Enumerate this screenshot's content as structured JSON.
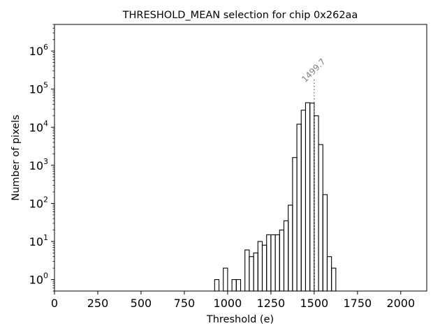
{
  "chart_data": {
    "type": "histogram",
    "title": "THRESHOLD_MEAN selection for chip 0x262aa",
    "xlabel": "Threshold (e)",
    "ylabel": "Number of pixels",
    "xlim": [
      0,
      2150
    ],
    "ylim": [
      0.5,
      5000000
    ],
    "yscale": "log",
    "grid": false,
    "x_ticks": [
      0,
      250,
      500,
      750,
      1000,
      1250,
      1500,
      1750,
      2000
    ],
    "y_ticks": [
      {
        "base": "10",
        "exp": "0",
        "value": 1
      },
      {
        "base": "10",
        "exp": "1",
        "value": 10
      },
      {
        "base": "10",
        "exp": "2",
        "value": 100
      },
      {
        "base": "10",
        "exp": "3",
        "value": 1000
      },
      {
        "base": "10",
        "exp": "4",
        "value": 10000
      },
      {
        "base": "10",
        "exp": "5",
        "value": 100000
      },
      {
        "base": "10",
        "exp": "6",
        "value": 1000000
      }
    ],
    "bin_width": 25,
    "bins": [
      {
        "x0": 925,
        "count": 1
      },
      {
        "x0": 975,
        "count": 2
      },
      {
        "x0": 1025,
        "count": 1
      },
      {
        "x0": 1050,
        "count": 1
      },
      {
        "x0": 1100,
        "count": 6
      },
      {
        "x0": 1125,
        "count": 4
      },
      {
        "x0": 1150,
        "count": 5
      },
      {
        "x0": 1175,
        "count": 10
      },
      {
        "x0": 1200,
        "count": 8
      },
      {
        "x0": 1225,
        "count": 15
      },
      {
        "x0": 1250,
        "count": 15
      },
      {
        "x0": 1275,
        "count": 15
      },
      {
        "x0": 1300,
        "count": 20
      },
      {
        "x0": 1325,
        "count": 35
      },
      {
        "x0": 1350,
        "count": 90
      },
      {
        "x0": 1375,
        "count": 1600
      },
      {
        "x0": 1400,
        "count": 12000
      },
      {
        "x0": 1425,
        "count": 28000
      },
      {
        "x0": 1450,
        "count": 44000
      },
      {
        "x0": 1475,
        "count": 43000
      },
      {
        "x0": 1500,
        "count": 20000
      },
      {
        "x0": 1525,
        "count": 3500
      },
      {
        "x0": 1550,
        "count": 170
      },
      {
        "x0": 1575,
        "count": 4
      },
      {
        "x0": 1600,
        "count": 2
      }
    ],
    "bins_note_last_edge": 1625,
    "edge_color": "#000000",
    "marker": {
      "x": 1499.7,
      "label": "1499.7",
      "y_top": 180000,
      "color": "#808080",
      "style": "dotted"
    }
  }
}
